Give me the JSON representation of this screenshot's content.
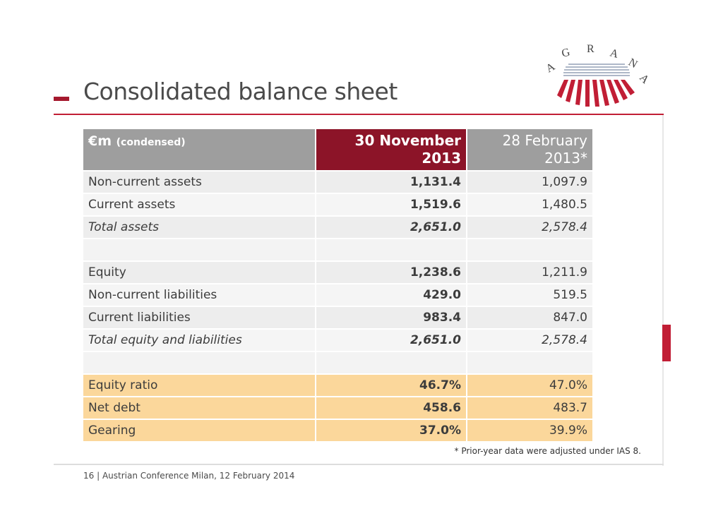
{
  "slide": {
    "title": "Consolidated balance sheet",
    "footnote": "* Prior-year data were adjusted under IAS 8.",
    "footer": "16  |  Austrian Conference Milan, 12 February 2014",
    "logo_text": "AGRANA"
  },
  "table": {
    "header": {
      "label": "€m",
      "label_sub": "(condensed)",
      "col1": "30 November 2013",
      "col2": "28 February 2013*"
    },
    "rows": [
      {
        "label": "Non-current assets",
        "v1": "1,131.4",
        "v2": "1,097.9"
      },
      {
        "label": "Current assets",
        "v1": "1,519.6",
        "v2": "1,480.5"
      },
      {
        "label": "Total assets",
        "v1": "2,651.0",
        "v2": "2,578.4"
      },
      {
        "label": "",
        "v1": "",
        "v2": ""
      },
      {
        "label": "Equity",
        "v1": "1,238.6",
        "v2": "1,211.9"
      },
      {
        "label": "Non-current liabilities",
        "v1": "429.0",
        "v2": "519.5"
      },
      {
        "label": "Current liabilities",
        "v1": "983.4",
        "v2": "847.0"
      },
      {
        "label": "Total equity and liabilities",
        "v1": "2,651.0",
        "v2": "2,578.4"
      },
      {
        "label": "",
        "v1": "",
        "v2": ""
      },
      {
        "label": "Equity ratio",
        "v1": "46.7%",
        "v2": "47.0%"
      },
      {
        "label": "Net debt",
        "v1": "458.6",
        "v2": "483.7"
      },
      {
        "label": "Gearing",
        "v1": "37.0%",
        "v2": "39.9%"
      }
    ]
  },
  "colors": {
    "accent_red": "#a5192e",
    "header_grey": "#9e9e9e",
    "header_red": "#8c1428",
    "highlight": "#fbd79b"
  }
}
